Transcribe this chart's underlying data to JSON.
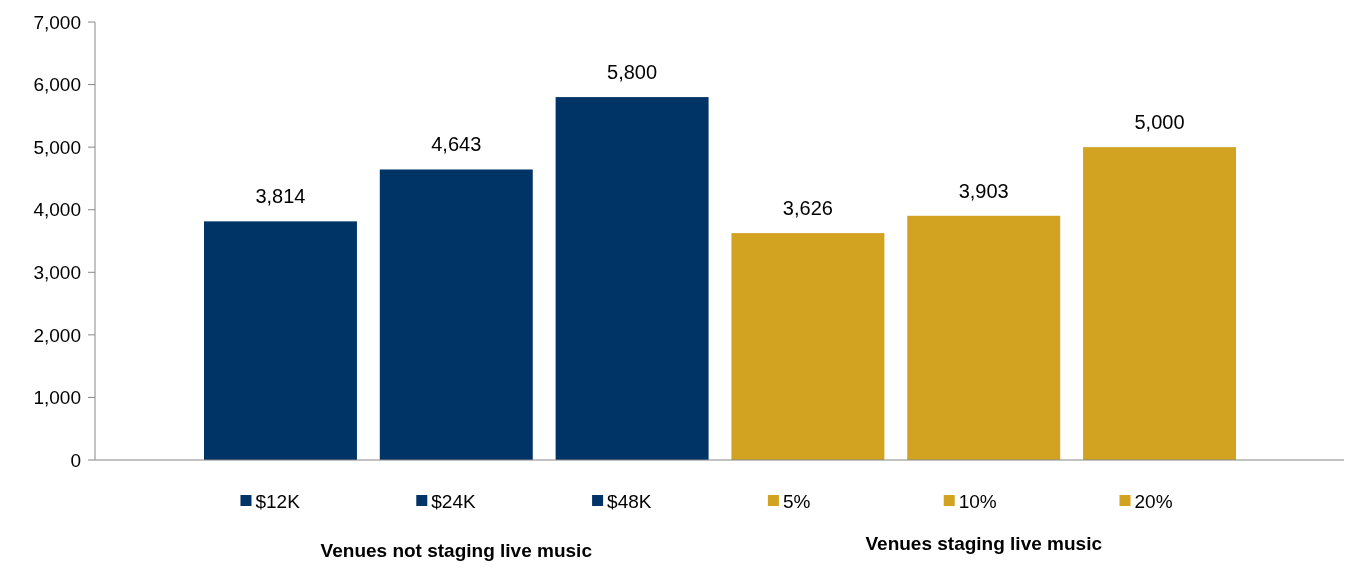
{
  "chart_data": {
    "type": "bar",
    "categories": [
      "$12K",
      "$24K",
      "$48K",
      "5%",
      "10%",
      "20%"
    ],
    "values": [
      3814,
      4643,
      5800,
      3626,
      3903,
      5000
    ],
    "colors": [
      "#003366",
      "#003366",
      "#003366",
      "#d1a320",
      "#d1a320",
      "#d1a320"
    ],
    "ylim": [
      0,
      7000
    ],
    "yticks": [
      {
        "value": 0,
        "label": "0"
      },
      {
        "value": 1000,
        "label": "1,000"
      },
      {
        "value": 2000,
        "label": "2,000"
      },
      {
        "value": 3000,
        "label": "3,000"
      },
      {
        "value": 4000,
        "label": "4,000"
      },
      {
        "value": 5000,
        "label": "5,000"
      },
      {
        "value": 6000,
        "label": "6,000"
      },
      {
        "value": 7000,
        "label": "7,000"
      }
    ],
    "value_labels": [
      "3,814",
      "4,643",
      "5,800",
      "3,626",
      "3,903",
      "5,000"
    ],
    "annotations": [
      "Venues not staging live music",
      "Venues staging live music"
    ],
    "grid": false
  }
}
